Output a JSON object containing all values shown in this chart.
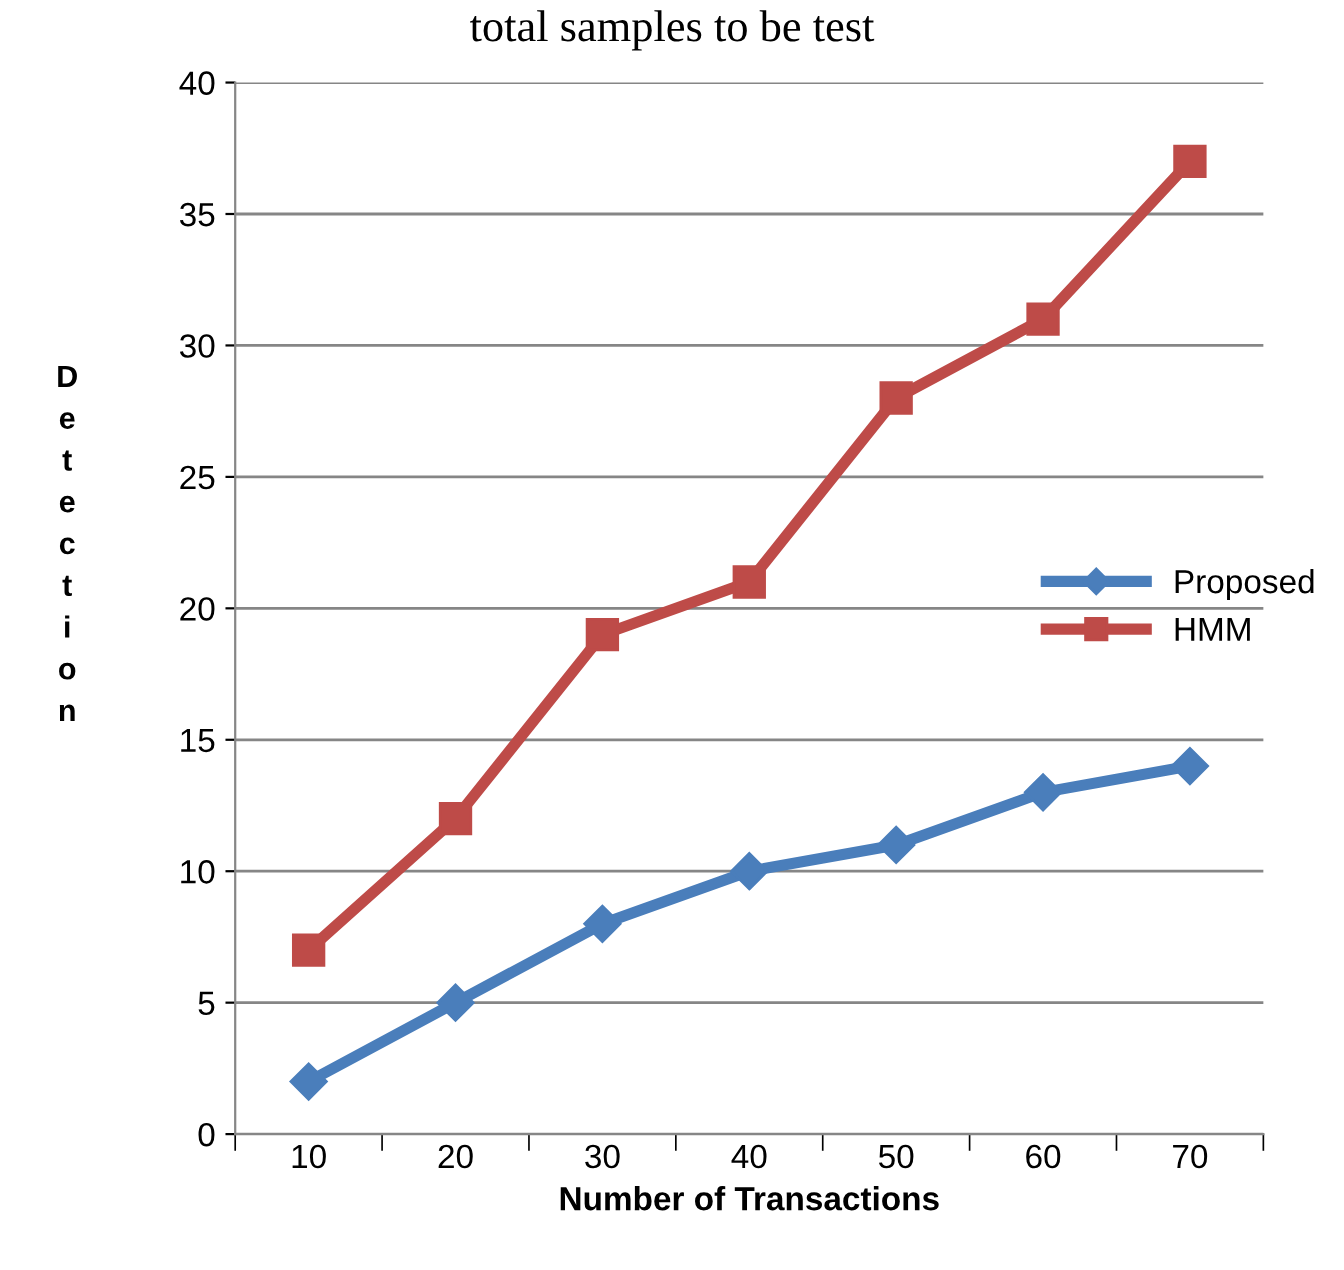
{
  "chart_data": {
    "type": "line",
    "title": "total samples to be test",
    "xlabel": "Number of Transactions",
    "ylabel": "Detection",
    "categories": [
      "10",
      "20",
      "30",
      "40",
      "50",
      "60",
      "70"
    ],
    "series": [
      {
        "name": "Proposed",
        "color": "#4a7ebb",
        "marker": "diamond",
        "values": [
          2,
          5,
          8,
          10,
          11,
          13,
          14
        ]
      },
      {
        "name": "HMM",
        "color": "#be4b48",
        "marker": "square",
        "values": [
          7,
          12,
          19,
          21,
          28,
          31,
          37
        ]
      }
    ],
    "ylim": [
      0,
      40
    ],
    "yticks": [
      0,
      5,
      10,
      15,
      20,
      25,
      30,
      35,
      40
    ],
    "grid": "y",
    "legend": "right",
    "line_style": "solid"
  }
}
